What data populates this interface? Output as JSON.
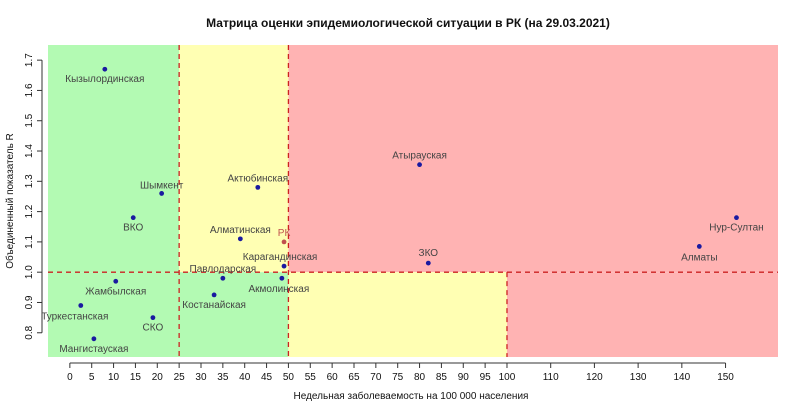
{
  "chart_data": {
    "type": "scatter",
    "title": "Матрица оценки эпидемиологической ситуации в РК (на 29.03.2021)",
    "xlabel": "Недельная заболеваемость на 100 000 населения",
    "ylabel": "Объединенный показатель R",
    "xlim": [
      -5,
      162
    ],
    "ylim": [
      0.72,
      1.75
    ],
    "xticks": [
      0,
      5,
      10,
      15,
      20,
      25,
      30,
      35,
      40,
      45,
      50,
      55,
      60,
      65,
      70,
      75,
      80,
      85,
      90,
      95,
      100,
      110,
      120,
      130,
      140,
      150
    ],
    "yticks": [
      0.8,
      0.9,
      1.0,
      1.1,
      1.2,
      1.3,
      1.4,
      1.5,
      1.6,
      1.7
    ],
    "grid": false,
    "thresholds": {
      "x": [
        25,
        50,
        100
      ],
      "y": 1.0
    },
    "zones": [
      {
        "color": "#b3fab3",
        "x": [
          -5,
          25
        ],
        "y": [
          1.0,
          1.75
        ]
      },
      {
        "color": "#ffffb3",
        "x": [
          25,
          50
        ],
        "y": [
          1.0,
          1.75
        ]
      },
      {
        "color": "#ffb3b3",
        "x": [
          50,
          162
        ],
        "y": [
          1.0,
          1.75
        ]
      },
      {
        "color": "#b3fab3",
        "x": [
          -5,
          50
        ],
        "y": [
          0.72,
          1.0
        ]
      },
      {
        "color": "#ffffb3",
        "x": [
          50,
          100
        ],
        "y": [
          0.72,
          1.0
        ]
      },
      {
        "color": "#ffb3b3",
        "x": [
          100,
          162
        ],
        "y": [
          0.72,
          1.0
        ]
      }
    ],
    "colors": {
      "threshold_line": "#cc2222",
      "point": "#1a1aa0",
      "label": "#444444",
      "rk": "#c0504d"
    },
    "points": [
      {
        "label": "Кызылординская",
        "x": 8,
        "y": 1.67,
        "label_anchor": "middle",
        "label_dx": 0,
        "label_dy": 13
      },
      {
        "label": "Шымкент",
        "x": 21,
        "y": 1.26,
        "label_anchor": "middle",
        "label_dx": 0,
        "label_dy": -5
      },
      {
        "label": "ВКО",
        "x": 14.5,
        "y": 1.18,
        "label_anchor": "middle",
        "label_dx": 0,
        "label_dy": 13
      },
      {
        "label": "Актюбинская",
        "x": 43,
        "y": 1.28,
        "label_anchor": "middle",
        "label_dx": 0,
        "label_dy": -6
      },
      {
        "label": "Алматинская",
        "x": 39,
        "y": 1.11,
        "label_anchor": "middle",
        "label_dx": 0,
        "label_dy": -6
      },
      {
        "label": "РК",
        "x": 49,
        "y": 1.1,
        "label_anchor": "middle",
        "label_dx": 0,
        "label_dy": -6,
        "highlight": true
      },
      {
        "label": "Карагандинская",
        "x": 49,
        "y": 1.02,
        "label_anchor": "middle",
        "label_dx": -4,
        "label_dy": -6
      },
      {
        "label": "Павлодарская",
        "x": 35,
        "y": 0.98,
        "label_anchor": "middle",
        "label_dx": 0,
        "label_dy": -6
      },
      {
        "label": "Акмолинская",
        "x": 48.5,
        "y": 0.98,
        "label_anchor": "middle",
        "label_dx": -3,
        "label_dy": 14
      },
      {
        "label": "Костанайская",
        "x": 33,
        "y": 0.925,
        "label_anchor": "middle",
        "label_dx": 0,
        "label_dy": 13
      },
      {
        "label": "Жамбылская",
        "x": 10.5,
        "y": 0.97,
        "label_anchor": "middle",
        "label_dx": 0,
        "label_dy": 13
      },
      {
        "label": "Туркестанская",
        "x": 2.5,
        "y": 0.89,
        "label_anchor": "middle",
        "label_dx": -6,
        "label_dy": 14
      },
      {
        "label": "СКО",
        "x": 19,
        "y": 0.85,
        "label_anchor": "middle",
        "label_dx": 0,
        "label_dy": 13
      },
      {
        "label": "Мангистауская",
        "x": 5.5,
        "y": 0.78,
        "label_anchor": "middle",
        "label_dx": 0,
        "label_dy": 13
      },
      {
        "label": "Атырауская",
        "x": 80,
        "y": 1.355,
        "label_anchor": "middle",
        "label_dx": 0,
        "label_dy": -6
      },
      {
        "label": "ЗКО",
        "x": 82,
        "y": 1.03,
        "label_anchor": "middle",
        "label_dx": 0,
        "label_dy": -7
      },
      {
        "label": "Нур-Султан",
        "x": 152.5,
        "y": 1.18,
        "label_anchor": "middle",
        "label_dx": 0,
        "label_dy": 13
      },
      {
        "label": "Алматы",
        "x": 144,
        "y": 1.085,
        "label_anchor": "middle",
        "label_dx": 0,
        "label_dy": 14
      }
    ]
  }
}
